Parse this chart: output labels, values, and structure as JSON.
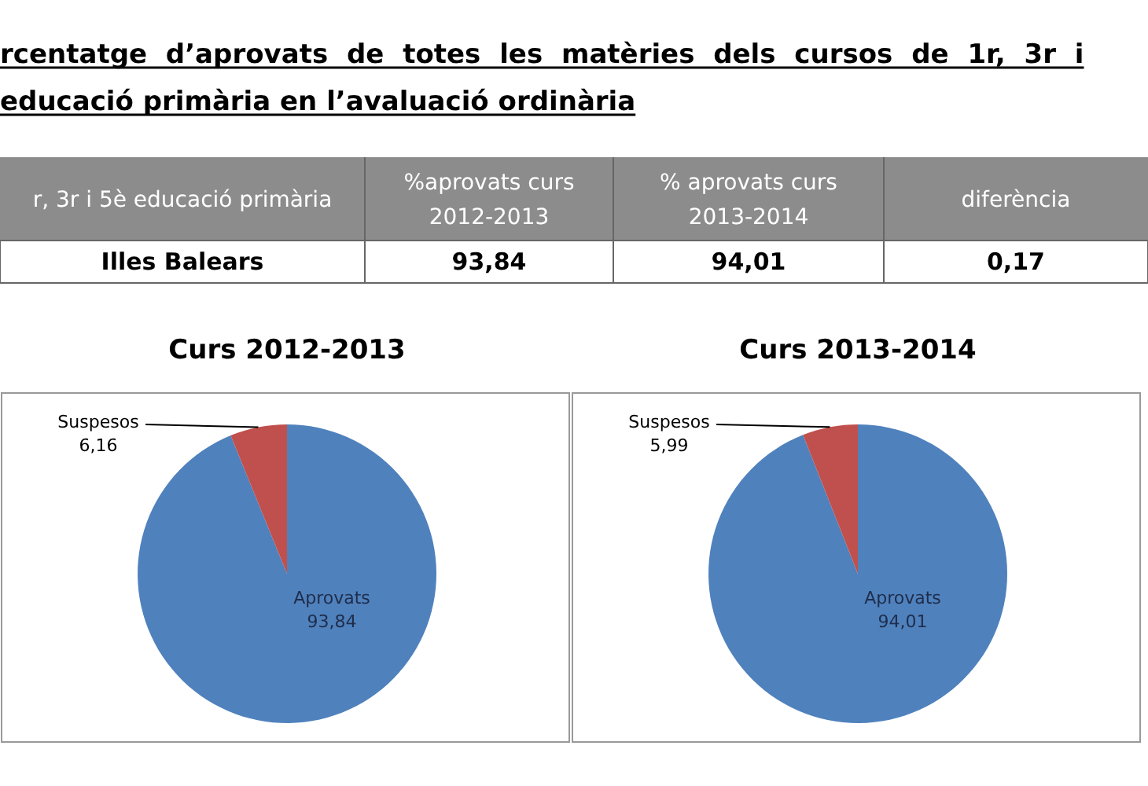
{
  "chart_data": [
    {
      "type": "other",
      "title": "rcentatge d’aprovats de totes les matèries dels cursos de 1r, 3r i\neducació primària en l’avaluació ordinària",
      "annotations": [
        "r, 3r i 5è educació primària",
        "%aprovats curs\n2012-2013",
        "% aprovats curs\n2013-2014",
        "diferència",
        "Illes Balears",
        "93,84",
        "94,01",
        "0,17"
      ]
    },
    {
      "type": "pie",
      "title": "Curs 2012-2013",
      "categories": [
        "Aprovats",
        "Suspesos"
      ],
      "values": [
        93.84,
        6.16
      ],
      "colors": [
        "#4f81bd",
        "#c0504d"
      ],
      "value_labels": [
        "93,84",
        "6,16"
      ]
    },
    {
      "type": "pie",
      "title": "Curs 2013-2014",
      "categories": [
        "Aprovats",
        "Suspesos"
      ],
      "values": [
        94.01,
        5.99
      ],
      "colors": [
        "#4f81bd",
        "#c0504d"
      ],
      "value_labels": [
        "94,01",
        "5,99"
      ]
    }
  ]
}
